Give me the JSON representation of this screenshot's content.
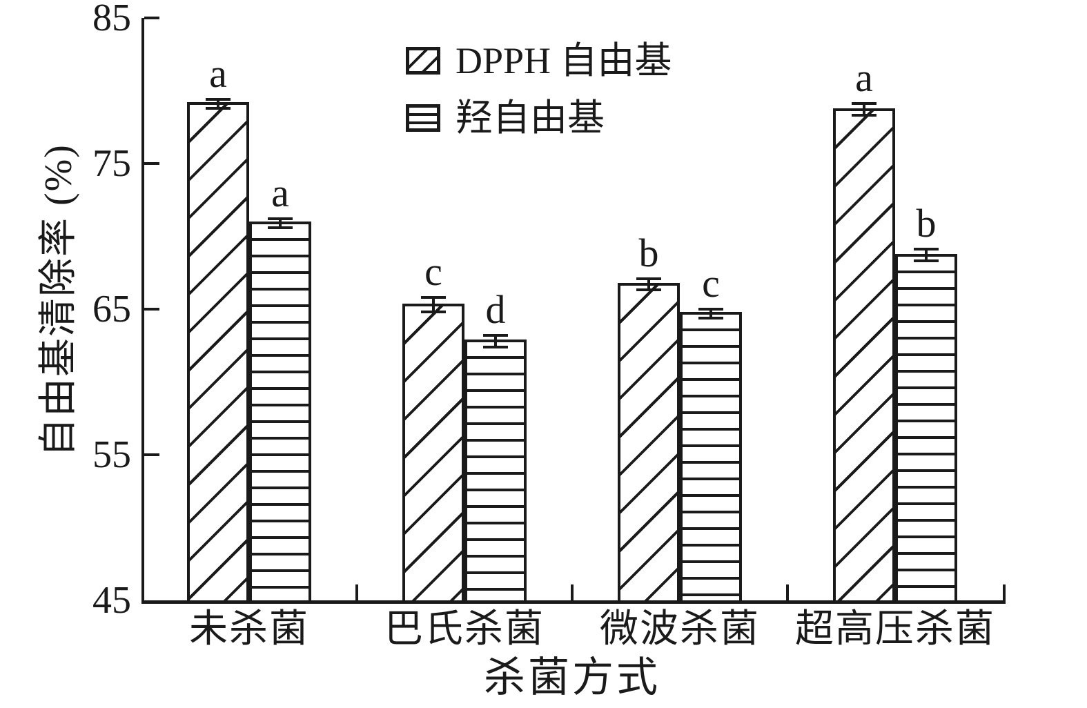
{
  "chart_data": {
    "type": "bar",
    "title": "",
    "xlabel": "杀菌方式",
    "ylabel": "自由基清除率 (%)",
    "ylim": [
      45,
      85
    ],
    "yticks": [
      45,
      55,
      65,
      75,
      85
    ],
    "grid": false,
    "legend_position": "upper-center",
    "categories": [
      "未杀菌",
      "巴氏杀菌",
      "微波杀菌",
      "超高压杀菌"
    ],
    "series": [
      {
        "name": "DPPH 自由基",
        "hatch": "diagonal",
        "values": [
          79.2,
          65.4,
          66.8,
          78.8
        ],
        "errors": [
          0.3,
          0.5,
          0.4,
          0.4
        ],
        "sig_letters": [
          "a",
          "c",
          "b",
          "a"
        ]
      },
      {
        "name": "羟自由基",
        "hatch": "horizontal",
        "values": [
          71.0,
          62.9,
          64.8,
          68.8
        ],
        "errors": [
          0.3,
          0.4,
          0.3,
          0.4
        ],
        "sig_letters": [
          "a",
          "d",
          "c",
          "b"
        ]
      }
    ],
    "colors": {
      "ink": "#1a1a1a",
      "background": "#ffffff",
      "bar_fill": "#ffffff"
    }
  }
}
